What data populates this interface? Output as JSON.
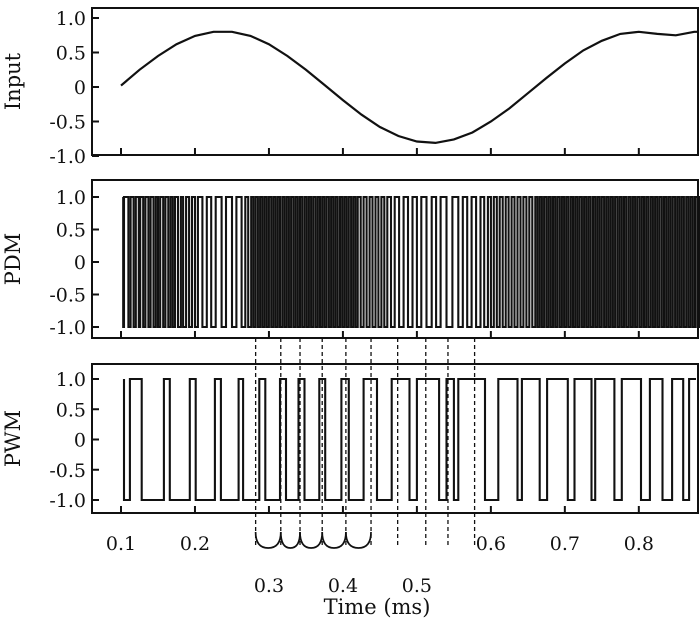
{
  "chart_data": [
    {
      "type": "line",
      "ylabel": "Input",
      "ylim": [
        -1.0,
        1.0
      ],
      "yticks": [
        "1.0",
        "0.5",
        "0",
        "-0.5",
        "-1.0"
      ],
      "xlim": [
        0.1,
        0.88
      ],
      "series": [
        {
          "x": [
            0.1,
            0.125,
            0.15,
            0.175,
            0.2,
            0.225,
            0.25,
            0.275,
            0.3,
            0.325,
            0.35,
            0.375,
            0.4,
            0.425,
            0.45,
            0.475,
            0.5,
            0.525,
            0.55,
            0.575,
            0.6,
            0.625,
            0.65,
            0.675,
            0.7,
            0.725,
            0.75,
            0.775,
            0.8,
            0.825,
            0.85,
            0.875,
            0.88
          ],
          "y": [
            0.02,
            0.25,
            0.45,
            0.62,
            0.74,
            0.8,
            0.8,
            0.74,
            0.62,
            0.45,
            0.25,
            0.03,
            -0.19,
            -0.4,
            -0.58,
            -0.71,
            -0.79,
            -0.81,
            -0.76,
            -0.66,
            -0.5,
            -0.31,
            -0.09,
            0.13,
            0.34,
            0.53,
            0.67,
            0.77,
            0.8,
            0.77,
            0.75,
            0.8,
            0.8
          ]
        }
      ]
    },
    {
      "type": "line",
      "ylabel": "PDM",
      "ylim": [
        -1.0,
        1.0
      ],
      "yticks": [
        "1.0",
        "0.5",
        "0",
        "-0.5",
        "-1.0"
      ],
      "xlim": [
        0.1,
        0.88
      ],
      "pulse_edges": [
        0.103,
        0.104,
        0.11,
        0.113,
        0.117,
        0.12,
        0.124,
        0.126,
        0.13,
        0.133,
        0.137,
        0.14,
        0.144,
        0.147,
        0.15,
        0.153,
        0.157,
        0.16,
        0.164,
        0.167,
        0.17,
        0.173,
        0.177,
        0.181,
        0.184,
        0.188,
        0.192,
        0.196,
        0.2,
        0.204,
        0.21,
        0.216,
        0.222,
        0.228,
        0.236,
        0.242,
        0.25,
        0.256,
        0.263,
        0.268,
        0.272,
        0.276,
        0.279,
        0.282,
        0.285,
        0.288,
        0.291,
        0.294,
        0.297,
        0.3,
        0.303,
        0.306,
        0.309,
        0.312,
        0.315,
        0.318,
        0.321,
        0.324,
        0.327,
        0.33,
        0.333,
        0.336,
        0.339,
        0.342,
        0.345,
        0.348,
        0.351,
        0.354,
        0.357,
        0.36,
        0.363,
        0.366,
        0.369,
        0.372,
        0.375,
        0.378,
        0.381,
        0.384,
        0.387,
        0.39,
        0.393,
        0.396,
        0.399,
        0.402,
        0.405,
        0.408,
        0.411,
        0.414,
        0.417,
        0.42,
        0.424,
        0.428,
        0.432,
        0.436,
        0.44,
        0.444,
        0.448,
        0.452,
        0.456,
        0.46,
        0.465,
        0.47,
        0.476,
        0.482,
        0.488,
        0.494,
        0.5,
        0.506,
        0.513,
        0.52,
        0.526,
        0.532,
        0.54,
        0.548,
        0.556,
        0.562,
        0.568,
        0.574,
        0.58,
        0.586,
        0.591,
        0.596,
        0.6,
        0.604,
        0.608,
        0.612,
        0.616,
        0.62,
        0.624,
        0.628,
        0.632,
        0.636,
        0.64,
        0.644,
        0.648,
        0.652,
        0.656,
        0.66,
        0.663,
        0.666,
        0.669,
        0.672,
        0.675,
        0.678,
        0.681,
        0.684,
        0.687,
        0.69,
        0.693,
        0.696,
        0.699,
        0.702,
        0.705,
        0.708,
        0.711,
        0.714,
        0.717,
        0.72,
        0.723,
        0.726,
        0.729,
        0.732,
        0.735,
        0.738,
        0.741,
        0.744,
        0.747,
        0.75,
        0.753,
        0.756,
        0.759,
        0.762,
        0.765,
        0.768,
        0.771,
        0.774,
        0.777,
        0.78,
        0.783,
        0.786,
        0.789,
        0.792,
        0.795,
        0.798,
        0.801,
        0.804,
        0.807,
        0.81,
        0.813,
        0.816,
        0.819,
        0.822,
        0.825,
        0.828,
        0.831,
        0.834,
        0.837,
        0.84,
        0.843,
        0.846,
        0.849,
        0.852,
        0.855,
        0.858,
        0.861,
        0.864,
        0.867,
        0.87,
        0.873,
        0.876,
        0.879,
        0.882
      ]
    },
    {
      "type": "line",
      "ylabel": "PWM",
      "xlabel": "Time (ms)",
      "ylim": [
        -1.0,
        1.0
      ],
      "yticks": [
        "1.0",
        "0.5",
        "0",
        "-0.5",
        "-1.0"
      ],
      "xlim": [
        0.1,
        0.88
      ],
      "xticks": [
        "0.1",
        "0.2",
        "0.3",
        "0.4",
        "0.5",
        "0.6",
        "0.7",
        "0.8"
      ],
      "pulse_edges": [
        0.104,
        0.112,
        0.128,
        0.158,
        0.166,
        0.193,
        0.201,
        0.227,
        0.235,
        0.259,
        0.265,
        0.287,
        0.295,
        0.315,
        0.323,
        0.34,
        0.348,
        0.368,
        0.376,
        0.398,
        0.408,
        0.428,
        0.446,
        0.466,
        0.49,
        0.5,
        0.53,
        0.54,
        0.55,
        0.556,
        0.592,
        0.61,
        0.636,
        0.642,
        0.666,
        0.676,
        0.704,
        0.713,
        0.736,
        0.741,
        0.767,
        0.777,
        0.803,
        0.815,
        0.832,
        0.845,
        0.86,
        0.868
      ],
      "guides_x": [
        0.282,
        0.316,
        0.342,
        0.372,
        0.404,
        0.438,
        0.474,
        0.512,
        0.542,
        0.578
      ]
    }
  ]
}
